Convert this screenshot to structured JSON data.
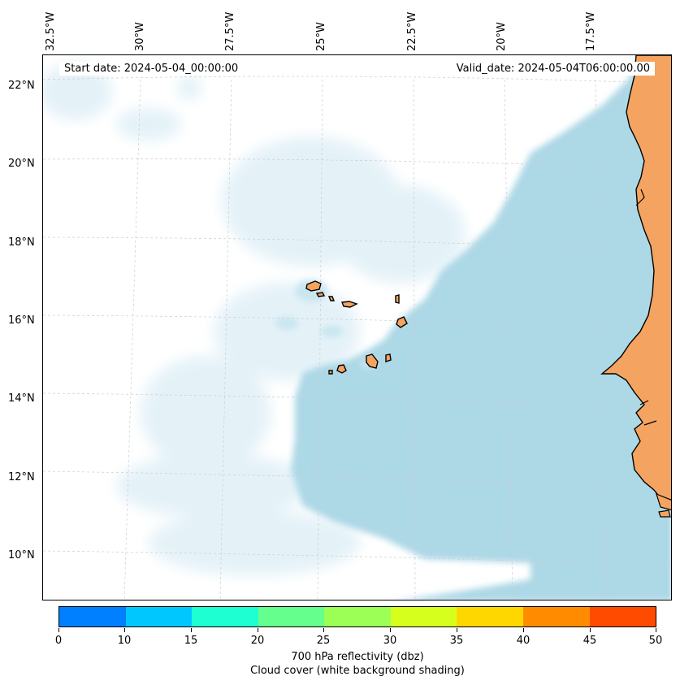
{
  "map": {
    "start_date": "Start date: 2024-05-04_00:00:00",
    "valid_date": "Valid_date: 2024-05-04T06:00:00.00",
    "lon_labels": [
      "32.5°W",
      "30°W",
      "27.5°W",
      "25°W",
      "22.5°W",
      "20°W",
      "17.5°W"
    ],
    "lat_labels": [
      "22°N",
      "20°N",
      "18°N",
      "16°N",
      "14°N",
      "12°N",
      "10°N"
    ],
    "colors": {
      "land": "#f4a460",
      "cloud": "#add8e6",
      "ocean": "#ffffff",
      "coastline": "#000000",
      "gridline": "#cccccc"
    },
    "features": [
      "Cape Verde islands",
      "West African coast",
      "cloud cover"
    ]
  },
  "colorbar": {
    "ticks": [
      "0",
      "10",
      "15",
      "20",
      "25",
      "30",
      "35",
      "40",
      "45",
      "50"
    ],
    "colors": [
      "#0080ff",
      "#00c8ff",
      "#1effd2",
      "#64ff8c",
      "#9bff55",
      "#d7ff1e",
      "#ffd700",
      "#ff8c00",
      "#ff4b00"
    ],
    "label_line1": "700 hPa reflectivity (dbz)",
    "label_line2": "Cloud cover (white background shading)"
  }
}
